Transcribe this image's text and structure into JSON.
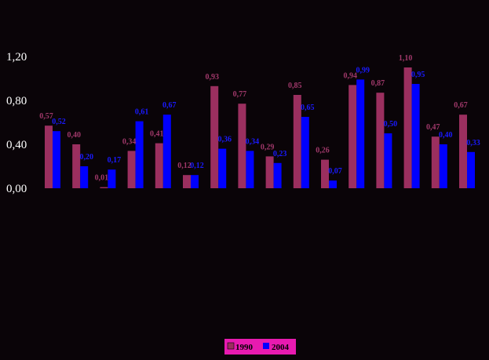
{
  "chart_data": {
    "type": "bar",
    "categories": [
      "",
      "",
      "",
      "",
      "",
      "",
      "",
      "",
      "",
      "",
      "",
      "",
      "",
      "",
      "",
      ""
    ],
    "series": [
      {
        "name": "1990",
        "color": "#9b2f5f",
        "values": [
          0.57,
          0.4,
          0.01,
          0.34,
          0.41,
          0.12,
          0.93,
          0.77,
          0.29,
          0.85,
          0.26,
          0.94,
          0.87,
          1.1,
          0.47,
          0.67
        ],
        "labels": [
          "0,57",
          "0,40",
          "0,01",
          "0,34",
          "0,41",
          "0,12",
          "0,93",
          "0,77",
          "0,29",
          "0,85",
          "0,26",
          "0,94",
          "0,87",
          "1,10",
          "0,47",
          "0,67"
        ]
      },
      {
        "name": "2004",
        "color": "#0000ff",
        "values": [
          0.52,
          0.2,
          0.17,
          0.61,
          0.67,
          0.12,
          0.36,
          0.34,
          0.23,
          0.65,
          0.07,
          0.99,
          0.5,
          0.95,
          0.4,
          0.33
        ],
        "labels": [
          "0,52",
          "0,20",
          "0,17",
          "0,61",
          "0,67",
          "0,12",
          "0,36",
          "0,34",
          "0,23",
          "0,65",
          "0,07",
          "0,99",
          "0,50",
          "0,95",
          "0,40",
          "0,33"
        ]
      }
    ],
    "yticks": [
      0,
      0.4,
      0.8,
      1.2
    ],
    "ytick_labels": [
      "0,00",
      "0,40",
      "0,80",
      "1,20"
    ],
    "ylim": [
      0,
      1.2
    ],
    "grid": false,
    "title": "",
    "xlabel": "",
    "ylabel": "",
    "legend": {
      "placement": "bottom-center",
      "background": "#e81ab0",
      "entries": [
        "1990",
        "2004"
      ]
    },
    "colors": {
      "background": "#0a0408",
      "axis_text": "#ffffff"
    }
  }
}
